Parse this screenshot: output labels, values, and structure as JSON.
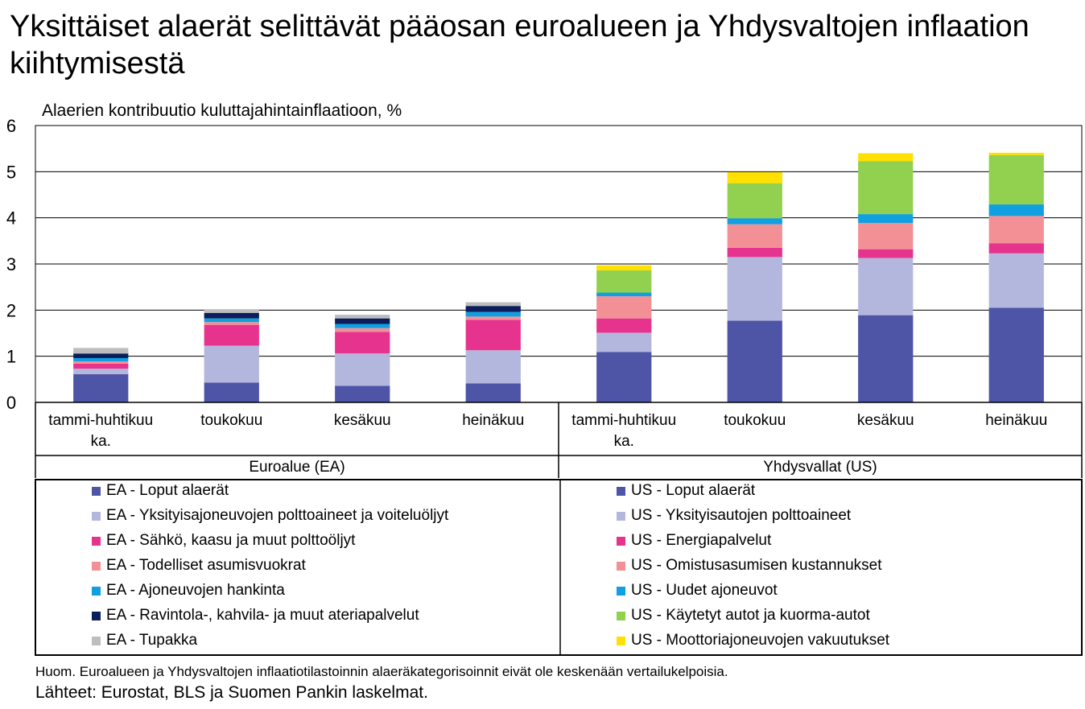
{
  "title": "Yksittäiset alaerät selittävät pääosan euroalueen ja Yhdysvaltojen inflaation kiihtymisestä",
  "subtitle": "Alaerien kontribuutio kuluttajahintainflaatioon, %",
  "footnote": "Huom. Euroalueen ja Yhdysvaltojen inflaatiotilastoinnin alaeräkategorisoinnit eivät ole keskenään vertailukelpoisia.",
  "sources": "Lähteet: Eurostat, BLS ja Suomen Pankin laskelmat.",
  "chart_data": {
    "type": "bar",
    "stacked": true,
    "ylim": [
      0,
      6
    ],
    "yticks": [
      0,
      1,
      2,
      3,
      4,
      5,
      6
    ],
    "grid": true,
    "groups": [
      {
        "label": "Euroalue (EA)",
        "categories": [
          "tammi-huhtikuu ka.",
          "toukokuu",
          "kesäkuu",
          "heinäkuu"
        ],
        "series": [
          {
            "name": "EA - Loput alaerät",
            "color": "#4E54A6",
            "values": [
              0.61,
              0.43,
              0.36,
              0.41
            ]
          },
          {
            "name": "EA - Yksityisajoneuvojen polttoaineet ja voiteluöljyt",
            "color": "#B4B7DD",
            "values": [
              0.12,
              0.8,
              0.7,
              0.72
            ]
          },
          {
            "name": "EA - Sähkö, kaasu ja muut polttoöljyt",
            "color": "#E5338E",
            "values": [
              0.11,
              0.45,
              0.47,
              0.66
            ]
          },
          {
            "name": "EA - Todelliset asumisvuokrat",
            "color": "#F29096",
            "values": [
              0.05,
              0.06,
              0.08,
              0.07
            ]
          },
          {
            "name": "EA - Ajoneuvojen hankinta",
            "color": "#109FE0",
            "values": [
              0.07,
              0.08,
              0.09,
              0.1
            ]
          },
          {
            "name": "EA - Ravintola-, kahvila- ja muut ateriapalvelut",
            "color": "#0B1E5B",
            "values": [
              0.1,
              0.12,
              0.12,
              0.13
            ]
          },
          {
            "name": "EA - Tupakka",
            "color": "#BDBDBD",
            "values": [
              0.12,
              0.08,
              0.08,
              0.08
            ]
          }
        ]
      },
      {
        "label": "Yhdysvallat (US)",
        "categories": [
          "tammi-huhtikuu ka.",
          "toukokuu",
          "kesäkuu",
          "heinäkuu"
        ],
        "series": [
          {
            "name": "US - Loput alaerät",
            "color": "#4E54A6",
            "values": [
              1.09,
              1.77,
              1.89,
              2.05
            ]
          },
          {
            "name": "US - Yksityisautojen polttoaineet",
            "color": "#B4B7DD",
            "values": [
              0.42,
              1.38,
              1.24,
              1.18
            ]
          },
          {
            "name": "US - Energiapalvelut",
            "color": "#E5338E",
            "values": [
              0.31,
              0.2,
              0.19,
              0.22
            ]
          },
          {
            "name": "US - Omistusasumisen kustannukset",
            "color": "#F29096",
            "values": [
              0.48,
              0.51,
              0.57,
              0.59
            ]
          },
          {
            "name": "US - Uudet ajoneuvot",
            "color": "#109FE0",
            "values": [
              0.08,
              0.13,
              0.19,
              0.25
            ]
          },
          {
            "name": "US - Käytetyt autot ja kuorma-autot",
            "color": "#92D050",
            "values": [
              0.48,
              0.76,
              1.15,
              1.07
            ]
          },
          {
            "name": "US - Moottoriajoneuvojen vakuutukset",
            "color": "#FFE000",
            "values": [
              0.11,
              0.24,
              0.17,
              0.05
            ]
          }
        ]
      }
    ]
  }
}
